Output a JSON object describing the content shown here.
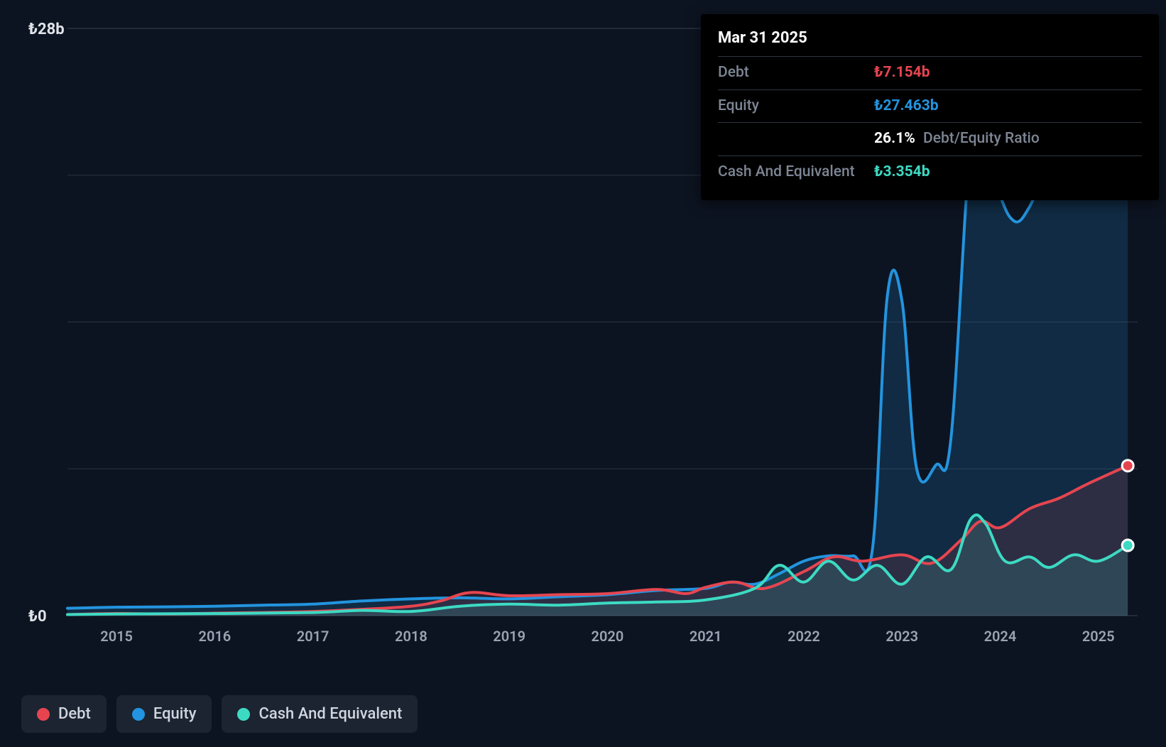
{
  "chart": {
    "type": "area",
    "background_color": "#0d1421",
    "grid_color": "#2a3240",
    "text_color": "#9aa3b2",
    "y_axis": {
      "min": 0,
      "max": 28,
      "ticks": [
        {
          "value": 0,
          "label": "₺0"
        },
        {
          "value": 28,
          "label": "₺28b"
        }
      ],
      "label_fontsize": 22,
      "label_color": "#e0e4ea"
    },
    "x_axis": {
      "min": 2014.5,
      "max": 2025.4,
      "ticks": [
        2015,
        2016,
        2017,
        2018,
        2019,
        2020,
        2021,
        2022,
        2023,
        2024,
        2025
      ],
      "label_fontsize": 20,
      "label_color": "#9aa3b2"
    },
    "series": [
      {
        "name": "Equity",
        "color": "#2394df",
        "fill_opacity": 0.18,
        "line_width": 4,
        "marker_end": true,
        "data": [
          {
            "x": 2014.5,
            "y": 0.35
          },
          {
            "x": 2015.0,
            "y": 0.4
          },
          {
            "x": 2015.5,
            "y": 0.42
          },
          {
            "x": 2016.0,
            "y": 0.45
          },
          {
            "x": 2016.5,
            "y": 0.5
          },
          {
            "x": 2017.0,
            "y": 0.55
          },
          {
            "x": 2017.5,
            "y": 0.7
          },
          {
            "x": 2018.0,
            "y": 0.8
          },
          {
            "x": 2018.5,
            "y": 0.85
          },
          {
            "x": 2019.0,
            "y": 0.8
          },
          {
            "x": 2019.5,
            "y": 0.9
          },
          {
            "x": 2020.0,
            "y": 1.0
          },
          {
            "x": 2020.5,
            "y": 1.2
          },
          {
            "x": 2021.0,
            "y": 1.3
          },
          {
            "x": 2021.25,
            "y": 1.6
          },
          {
            "x": 2021.5,
            "y": 1.5
          },
          {
            "x": 2021.75,
            "y": 2.0
          },
          {
            "x": 2022.0,
            "y": 2.6
          },
          {
            "x": 2022.25,
            "y": 2.85
          },
          {
            "x": 2022.5,
            "y": 2.85
          },
          {
            "x": 2022.7,
            "y": 3.2
          },
          {
            "x": 2022.85,
            "y": 15.2
          },
          {
            "x": 2023.0,
            "y": 15.0
          },
          {
            "x": 2023.15,
            "y": 7.0
          },
          {
            "x": 2023.35,
            "y": 7.2
          },
          {
            "x": 2023.5,
            "y": 8.5
          },
          {
            "x": 2023.7,
            "y": 22.5
          },
          {
            "x": 2023.85,
            "y": 22.0
          },
          {
            "x": 2024.1,
            "y": 19.0
          },
          {
            "x": 2024.3,
            "y": 19.5
          },
          {
            "x": 2024.6,
            "y": 23.0
          },
          {
            "x": 2024.9,
            "y": 24.5
          },
          {
            "x": 2025.1,
            "y": 26.0
          },
          {
            "x": 2025.3,
            "y": 27.46
          }
        ]
      },
      {
        "name": "Debt",
        "color": "#e64550",
        "fill_opacity": 0.14,
        "line_width": 4,
        "marker_end": true,
        "data": [
          {
            "x": 2014.5,
            "y": 0.05
          },
          {
            "x": 2015.0,
            "y": 0.1
          },
          {
            "x": 2015.5,
            "y": 0.08
          },
          {
            "x": 2016.0,
            "y": 0.12
          },
          {
            "x": 2016.5,
            "y": 0.15
          },
          {
            "x": 2017.0,
            "y": 0.2
          },
          {
            "x": 2017.5,
            "y": 0.3
          },
          {
            "x": 2018.0,
            "y": 0.45
          },
          {
            "x": 2018.3,
            "y": 0.7
          },
          {
            "x": 2018.6,
            "y": 1.1
          },
          {
            "x": 2019.0,
            "y": 0.95
          },
          {
            "x": 2019.5,
            "y": 1.0
          },
          {
            "x": 2020.0,
            "y": 1.05
          },
          {
            "x": 2020.5,
            "y": 1.25
          },
          {
            "x": 2020.8,
            "y": 1.05
          },
          {
            "x": 2021.0,
            "y": 1.35
          },
          {
            "x": 2021.3,
            "y": 1.6
          },
          {
            "x": 2021.6,
            "y": 1.3
          },
          {
            "x": 2022.0,
            "y": 2.1
          },
          {
            "x": 2022.3,
            "y": 2.8
          },
          {
            "x": 2022.6,
            "y": 2.6
          },
          {
            "x": 2023.0,
            "y": 2.9
          },
          {
            "x": 2023.3,
            "y": 2.5
          },
          {
            "x": 2023.6,
            "y": 3.6
          },
          {
            "x": 2023.8,
            "y": 4.5
          },
          {
            "x": 2024.0,
            "y": 4.2
          },
          {
            "x": 2024.3,
            "y": 5.1
          },
          {
            "x": 2024.6,
            "y": 5.6
          },
          {
            "x": 2024.9,
            "y": 6.3
          },
          {
            "x": 2025.3,
            "y": 7.15
          }
        ]
      },
      {
        "name": "Cash And Equivalent",
        "color": "#3ddac3",
        "fill_opacity": 0.14,
        "line_width": 4,
        "marker_end": true,
        "data": [
          {
            "x": 2014.5,
            "y": 0.05
          },
          {
            "x": 2015.0,
            "y": 0.08
          },
          {
            "x": 2016.0,
            "y": 0.1
          },
          {
            "x": 2017.0,
            "y": 0.15
          },
          {
            "x": 2017.5,
            "y": 0.25
          },
          {
            "x": 2018.0,
            "y": 0.2
          },
          {
            "x": 2018.5,
            "y": 0.45
          },
          {
            "x": 2019.0,
            "y": 0.55
          },
          {
            "x": 2019.5,
            "y": 0.5
          },
          {
            "x": 2020.0,
            "y": 0.6
          },
          {
            "x": 2020.5,
            "y": 0.65
          },
          {
            "x": 2021.0,
            "y": 0.75
          },
          {
            "x": 2021.5,
            "y": 1.3
          },
          {
            "x": 2021.75,
            "y": 2.4
          },
          {
            "x": 2022.0,
            "y": 1.6
          },
          {
            "x": 2022.25,
            "y": 2.6
          },
          {
            "x": 2022.5,
            "y": 1.7
          },
          {
            "x": 2022.75,
            "y": 2.4
          },
          {
            "x": 2023.0,
            "y": 1.5
          },
          {
            "x": 2023.25,
            "y": 2.8
          },
          {
            "x": 2023.5,
            "y": 2.2
          },
          {
            "x": 2023.7,
            "y": 4.6
          },
          {
            "x": 2023.85,
            "y": 4.4
          },
          {
            "x": 2024.05,
            "y": 2.6
          },
          {
            "x": 2024.3,
            "y": 2.8
          },
          {
            "x": 2024.5,
            "y": 2.3
          },
          {
            "x": 2024.75,
            "y": 2.9
          },
          {
            "x": 2025.0,
            "y": 2.6
          },
          {
            "x": 2025.3,
            "y": 3.35
          }
        ]
      }
    ],
    "tooltip": {
      "date": "Mar 31 2025",
      "rows": [
        {
          "label": "Debt",
          "value": "₺7.154b",
          "color": "#e64550"
        },
        {
          "label": "Equity",
          "value": "₺27.463b",
          "color": "#2394df"
        }
      ],
      "ratio": {
        "value": "26.1%",
        "label": "Debt/Equity Ratio"
      },
      "extra": {
        "label": "Cash And Equivalent",
        "value": "₺3.354b",
        "color": "#3ddac3"
      }
    },
    "legend": [
      {
        "label": "Debt",
        "color": "#e64550"
      },
      {
        "label": "Equity",
        "color": "#2394df"
      },
      {
        "label": "Cash And Equivalent",
        "color": "#3ddac3"
      }
    ]
  }
}
